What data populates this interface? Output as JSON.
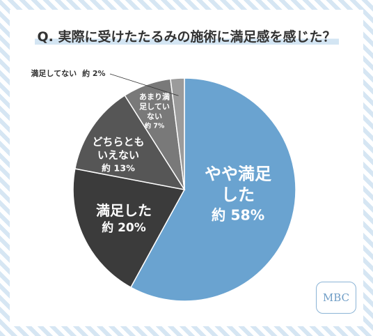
{
  "chart_data": {
    "type": "pie",
    "title": "Q. 実際に受けたたるみの施術に満足感を感じた？",
    "categories": [
      "やや満足した",
      "満足した",
      "どちらともいえない",
      "あまり満足していない",
      "満足してない"
    ],
    "values": [
      58,
      20,
      13,
      7,
      2
    ],
    "value_labels": [
      "約 58%",
      "約 20%",
      "約 13%",
      "約 7%",
      "約 2%"
    ],
    "colors": [
      "#6aa3d0",
      "#3b3b3b",
      "#565656",
      "#797979",
      "#9b9b9b"
    ]
  },
  "logo": "MBC"
}
